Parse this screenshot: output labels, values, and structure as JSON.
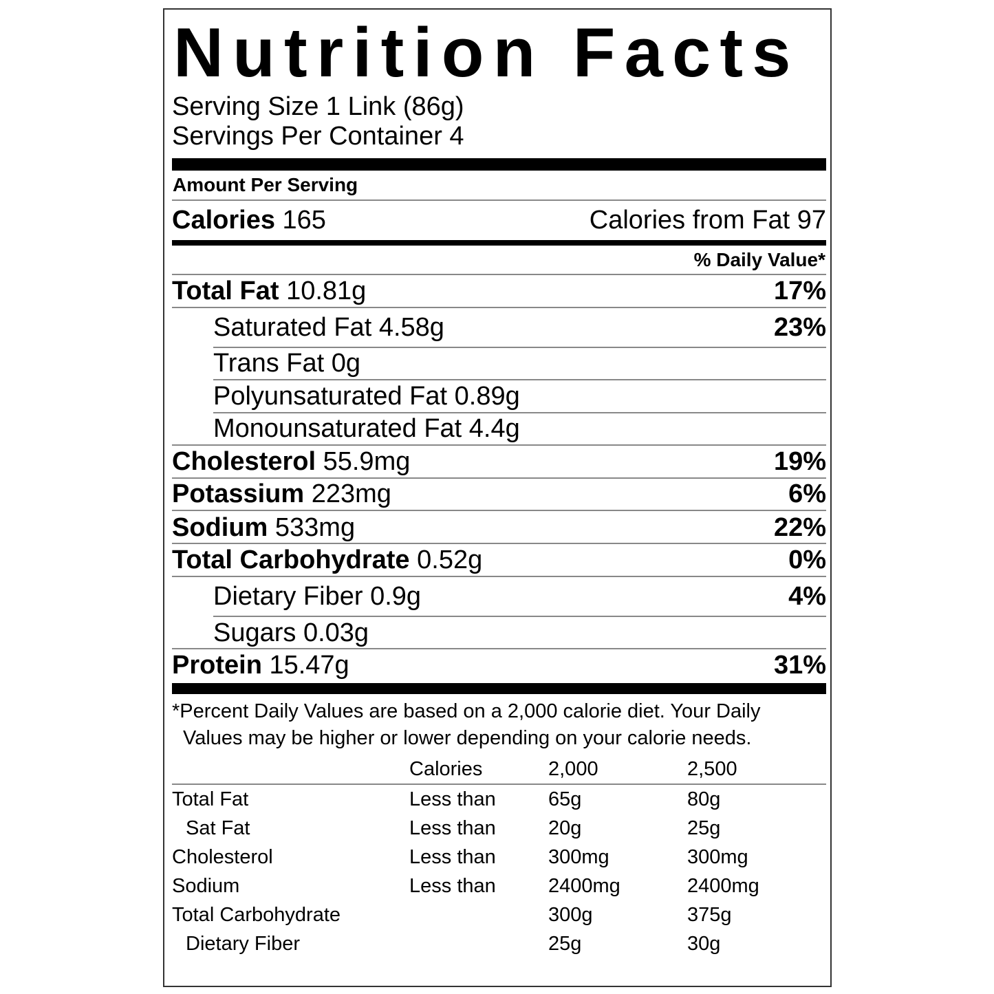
{
  "title": "Nutrition Facts",
  "serving_size": "Serving Size 1 Link (86g)",
  "servings_per_container": "Servings Per Container 4",
  "amount_per_serving": "Amount Per Serving",
  "calories": {
    "label": "Calories",
    "value": "165",
    "from_fat": "Calories from Fat 97"
  },
  "daily_value_header": "% Daily Value*",
  "nutrients": [
    {
      "label": "Total Fat",
      "amount": "10.81g",
      "dv": "17%"
    },
    {
      "label": "Saturated Fat",
      "amount": "4.58g",
      "dv": "23%"
    },
    {
      "label": "Trans Fat",
      "amount": "0g",
      "dv": ""
    },
    {
      "label": "Polyunsaturated Fat",
      "amount": "0.89g",
      "dv": ""
    },
    {
      "label": "Monounsaturated Fat",
      "amount": "4.4g",
      "dv": ""
    },
    {
      "label": "Cholesterol",
      "amount": "55.9mg",
      "dv": "19%"
    },
    {
      "label": "Potassium",
      "amount": "223mg",
      "dv": "6%"
    },
    {
      "label": "Sodium",
      "amount": "533mg",
      "dv": "22%"
    },
    {
      "label": "Total Carbohydrate",
      "amount": "0.52g",
      "dv": "0%"
    },
    {
      "label": "Dietary Fiber",
      "amount": "0.9g",
      "dv": "4%"
    },
    {
      "label": "Sugars",
      "amount": "0.03g",
      "dv": ""
    },
    {
      "label": "Protein",
      "amount": "15.47g",
      "dv": "31%"
    }
  ],
  "footnote": {
    "line1": "*Percent Daily Values are based on a 2,000 calorie diet. Your Daily",
    "line2": "Values may be higher or lower depending on your calorie needs."
  },
  "reference_table": {
    "header": [
      "",
      "Calories",
      "2,000",
      "2,500"
    ],
    "rows": [
      [
        "Total Fat",
        "Less than",
        "65g",
        "80g"
      ],
      [
        "Sat Fat",
        "Less than",
        "20g",
        "25g"
      ],
      [
        "Cholesterol",
        "Less than",
        "300mg",
        "300mg"
      ],
      [
        "Sodium",
        "Less than",
        "2400mg",
        "2400mg"
      ],
      [
        "Total Carbohydrate",
        "",
        "300g",
        "375g"
      ],
      [
        "Dietary Fiber",
        "",
        "25g",
        "30g"
      ]
    ]
  }
}
